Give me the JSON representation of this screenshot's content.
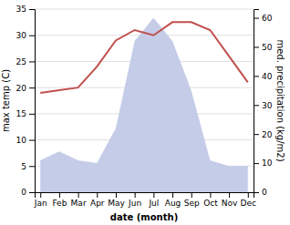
{
  "chart_data": {
    "type": "line",
    "categories": [
      "Jan",
      "Feb",
      "Mar",
      "Apr",
      "May",
      "Jun",
      "Jul",
      "Aug",
      "Sep",
      "Oct",
      "Nov",
      "Dec"
    ],
    "xlabel": "date (month)",
    "ylabel": "max temp (C)",
    "y2label": "med. precipitation (kg/m2)",
    "series": [
      {
        "type": "area",
        "axis": "y2",
        "color": "#c5cce8",
        "values": [
          11,
          14,
          11,
          10,
          22,
          52,
          60,
          52,
          35,
          11,
          9,
          9
        ]
      },
      {
        "type": "line",
        "color": "#c0504d",
        "values": [
          19,
          19.5,
          20,
          24,
          29,
          31,
          30,
          32.5,
          32.5,
          31,
          26,
          21
        ]
      }
    ],
    "ylim": [
      0,
      35
    ],
    "yticks": [
      0,
      5,
      10,
      15,
      20,
      25,
      30,
      35
    ],
    "y2lim": [
      0,
      63
    ],
    "y2ticks": [
      0,
      10,
      20,
      30,
      40,
      50,
      60
    ],
    "grid": true
  }
}
